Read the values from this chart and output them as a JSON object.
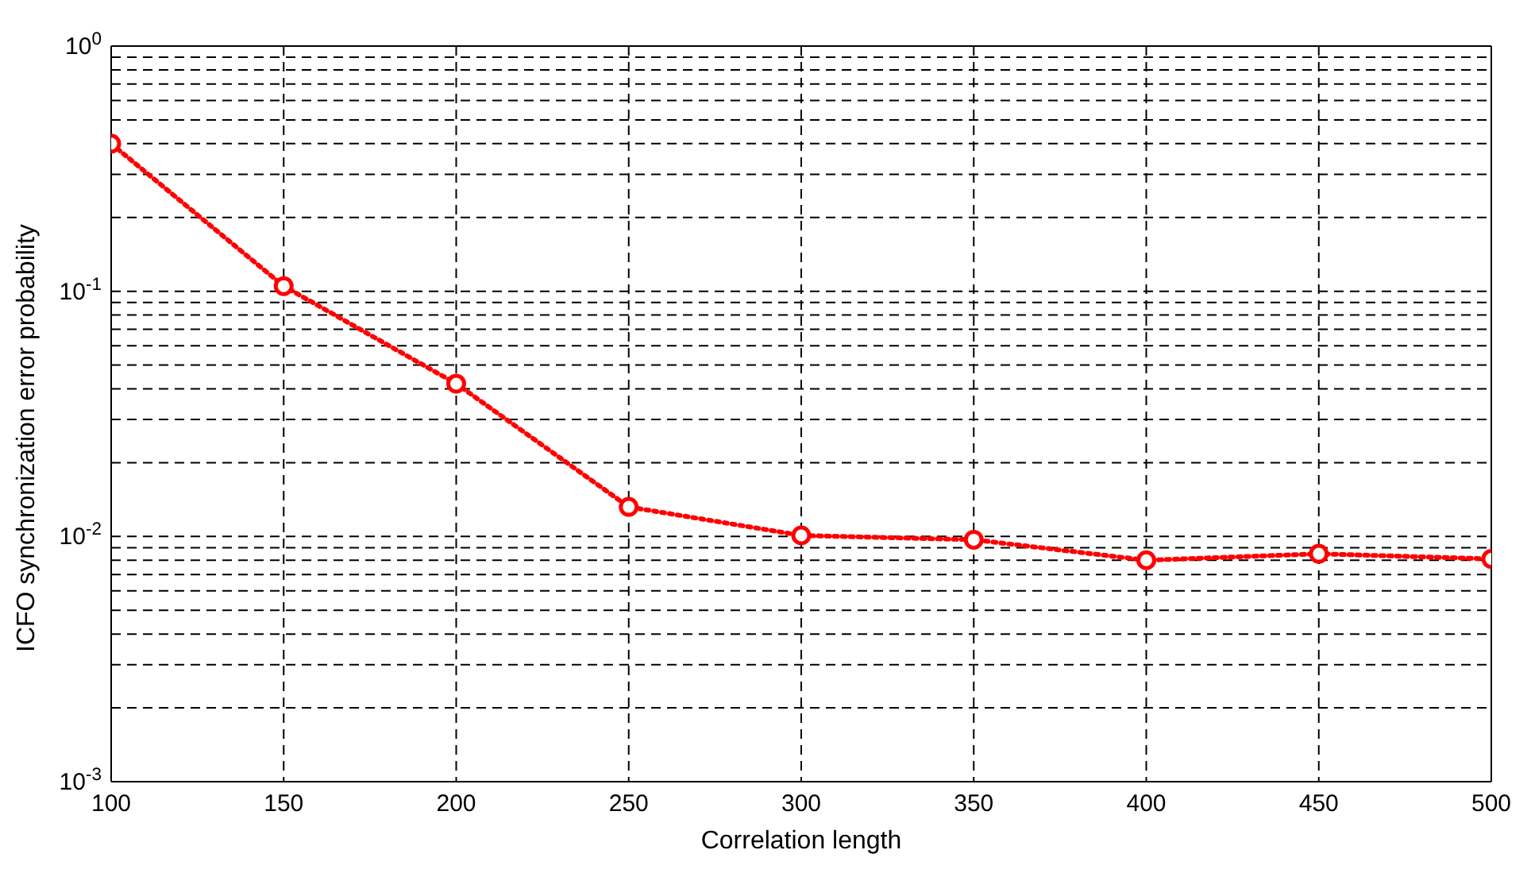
{
  "chart_data": {
    "type": "line",
    "xlabel": "Correlation length",
    "ylabel": "ICFO synchronization error probability",
    "x": [
      100,
      150,
      200,
      250,
      300,
      350,
      400,
      450,
      500
    ],
    "series": [
      {
        "color": "#ff0000",
        "values": [
          0.4,
          0.105,
          0.042,
          0.0132,
          0.0101,
          0.0097,
          0.008,
          0.0085,
          0.0081
        ]
      }
    ],
    "xlim": [
      100,
      500
    ],
    "xticks": [
      100,
      150,
      200,
      250,
      300,
      350,
      400,
      450,
      500
    ],
    "ylim": [
      0.001,
      1
    ],
    "log": true,
    "yticks": [
      {
        "value": 0.001,
        "label": "10$^{-3}$"
      },
      {
        "value": 0.002,
        "label": null
      },
      {
        "value": 0.003,
        "label": null
      },
      {
        "value": 0.004,
        "label": null
      },
      {
        "value": 0.005,
        "label": null
      },
      {
        "value": 0.006,
        "label": null
      },
      {
        "value": 0.007,
        "label": null
      },
      {
        "value": 0.008,
        "label": null
      },
      {
        "value": 0.009,
        "label": null
      },
      {
        "value": 0.01,
        "label": "10$^{-2}$"
      },
      {
        "value": 0.02,
        "label": null
      },
      {
        "value": 0.03,
        "label": null
      },
      {
        "value": 0.04,
        "label": null
      },
      {
        "value": 0.05,
        "label": null
      },
      {
        "value": 0.06,
        "label": null
      },
      {
        "value": 0.07,
        "label": null
      },
      {
        "value": 0.08,
        "label": null
      },
      {
        "value": 0.09,
        "label": null
      },
      {
        "value": 0.1,
        "label": "10$^{-1}$"
      },
      {
        "value": 0.2,
        "label": null
      },
      {
        "value": 0.3,
        "label": null
      },
      {
        "value": 0.4,
        "label": null
      },
      {
        "value": 0.5,
        "label": null
      },
      {
        "value": 0.6,
        "label": null
      },
      {
        "value": 0.7,
        "label": null
      },
      {
        "value": 0.8,
        "label": null
      },
      {
        "value": 0.9,
        "label": null
      },
      {
        "value": 1,
        "label": "10$^{0}$"
      }
    ],
    "grid": true,
    "legend": false,
    "marker": "circle",
    "line_style": "dotted"
  }
}
